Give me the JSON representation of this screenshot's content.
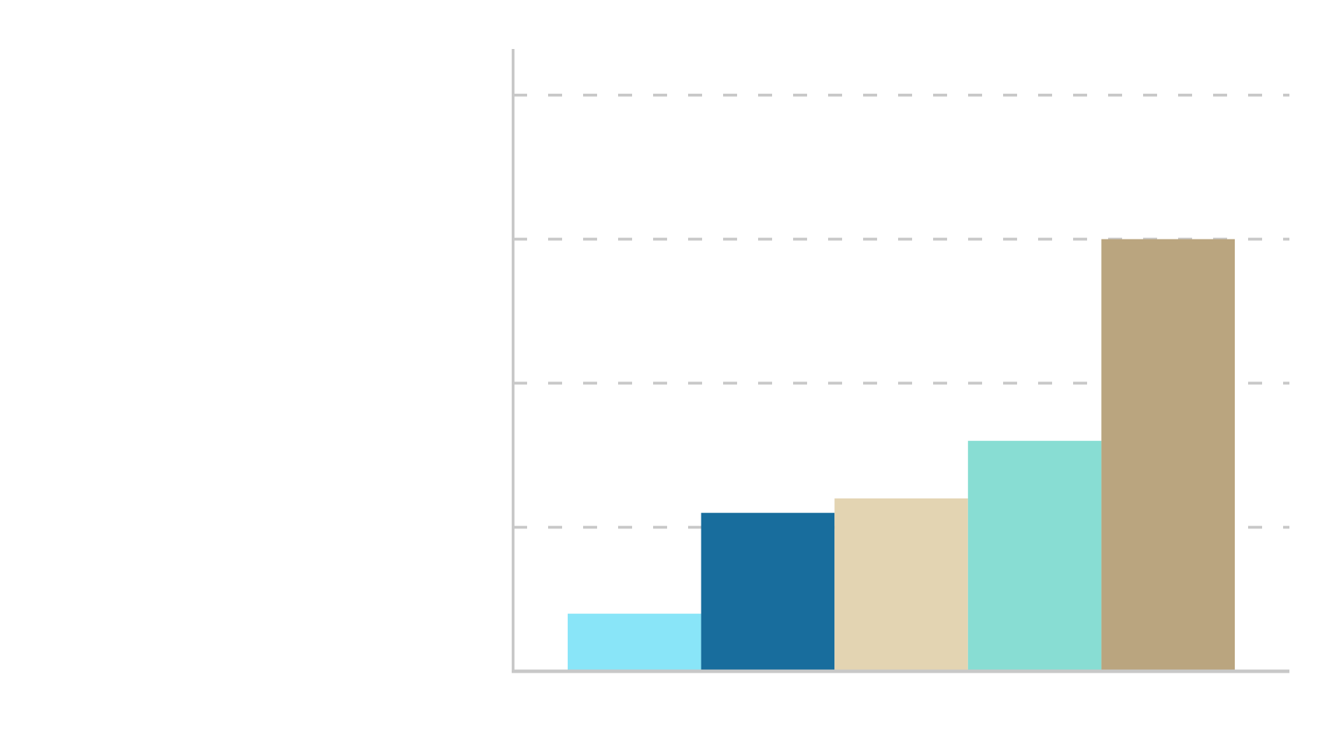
{
  "chart_data": {
    "type": "bar",
    "categories": [
      null,
      null,
      null,
      null,
      null
    ],
    "values": [
      0.4,
      1.1,
      1.2,
      1.6,
      3.0
    ],
    "colors": [
      "#89e5f8",
      "#186d9d",
      "#e3d4b2",
      "#88ddd3",
      "#baa57f"
    ],
    "ylim": [
      0,
      4.32
    ],
    "yticks": [
      1,
      2,
      3,
      4
    ],
    "grid": true
  }
}
